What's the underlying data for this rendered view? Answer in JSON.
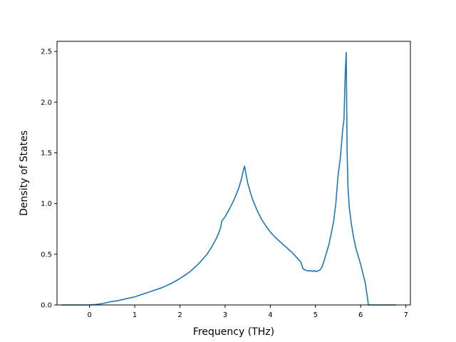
{
  "chart_data": {
    "type": "line",
    "title": "",
    "xlabel": "Frequency (THz)",
    "ylabel": "Density of States",
    "xlim": [
      -0.72,
      7.1
    ],
    "ylim": [
      0.0,
      2.6
    ],
    "xticks": [
      0,
      1,
      2,
      3,
      4,
      5,
      6,
      7
    ],
    "yticks": [
      0.0,
      0.5,
      1.0,
      1.5,
      2.0,
      2.5
    ],
    "xtick_labels": [
      "0",
      "1",
      "2",
      "3",
      "4",
      "5",
      "6",
      "7"
    ],
    "ytick_labels": [
      "0.0",
      "0.5",
      "1.0",
      "1.5",
      "2.0",
      "2.5"
    ],
    "grid": false,
    "series": [
      {
        "color": "#1f77b4",
        "x": [
          -0.62,
          0.0,
          0.15,
          0.3,
          0.45,
          0.5,
          0.6,
          0.75,
          0.9,
          1.0,
          1.2,
          1.4,
          1.6,
          1.8,
          2.0,
          2.2,
          2.4,
          2.6,
          2.7,
          2.8,
          2.85,
          2.9,
          2.93,
          3.0,
          3.1,
          3.2,
          3.3,
          3.36,
          3.4,
          3.43,
          3.5,
          3.6,
          3.7,
          3.8,
          3.9,
          4.0,
          4.1,
          4.2,
          4.3,
          4.4,
          4.5,
          4.6,
          4.68,
          4.72,
          4.75,
          4.8,
          4.85,
          4.9,
          4.93,
          4.97,
          5.0,
          5.05,
          5.1,
          5.15,
          5.2,
          5.3,
          5.4,
          5.45,
          5.5,
          5.55,
          5.6,
          5.63,
          5.66,
          5.68,
          5.7,
          5.72,
          5.75,
          5.8,
          5.85,
          5.9,
          6.0,
          6.1,
          6.15,
          6.17,
          6.3,
          6.5,
          6.78
        ],
        "y": [
          0.0,
          0.0,
          0.005,
          0.015,
          0.03,
          0.035,
          0.04,
          0.055,
          0.07,
          0.08,
          0.11,
          0.14,
          0.17,
          0.21,
          0.26,
          0.32,
          0.4,
          0.5,
          0.57,
          0.65,
          0.7,
          0.76,
          0.83,
          0.87,
          0.95,
          1.04,
          1.15,
          1.24,
          1.32,
          1.37,
          1.2,
          1.05,
          0.94,
          0.85,
          0.78,
          0.72,
          0.67,
          0.63,
          0.59,
          0.55,
          0.51,
          0.46,
          0.42,
          0.36,
          0.35,
          0.34,
          0.335,
          0.34,
          0.33,
          0.34,
          0.33,
          0.335,
          0.345,
          0.38,
          0.45,
          0.6,
          0.82,
          1.0,
          1.28,
          1.45,
          1.72,
          1.83,
          2.3,
          2.49,
          1.5,
          1.15,
          0.95,
          0.78,
          0.65,
          0.55,
          0.4,
          0.22,
          0.07,
          0.0,
          0.0,
          0.0,
          0.0
        ]
      }
    ]
  }
}
